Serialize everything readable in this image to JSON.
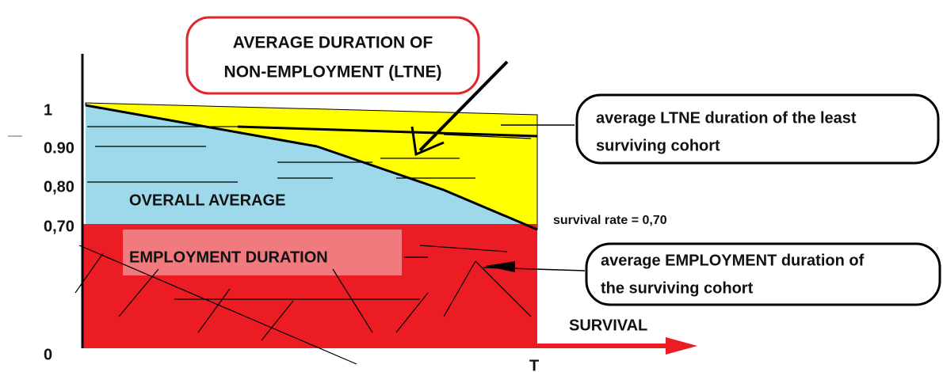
{
  "axis": {
    "y_labels": [
      "1",
      "0.90",
      "0,80",
      "0,70",
      "0"
    ],
    "x_label": "T"
  },
  "callouts": {
    "non_employment": [
      "AVERAGE DURATION OF",
      "NON-EMPLOYMENT (LTNE)"
    ],
    "least_surviving": [
      "average LTNE duration of the least",
      "surviving cohort"
    ],
    "surviving_employment": [
      "average EMPLOYMENT duration of",
      "the surviving cohort"
    ]
  },
  "regions": {
    "overall": "OVERALL AVERAGE",
    "employment": "EMPLOYMENT DURATION"
  },
  "survival_rate": "survival rate = 0,70",
  "arrow_label": "SURVIVAL"
}
